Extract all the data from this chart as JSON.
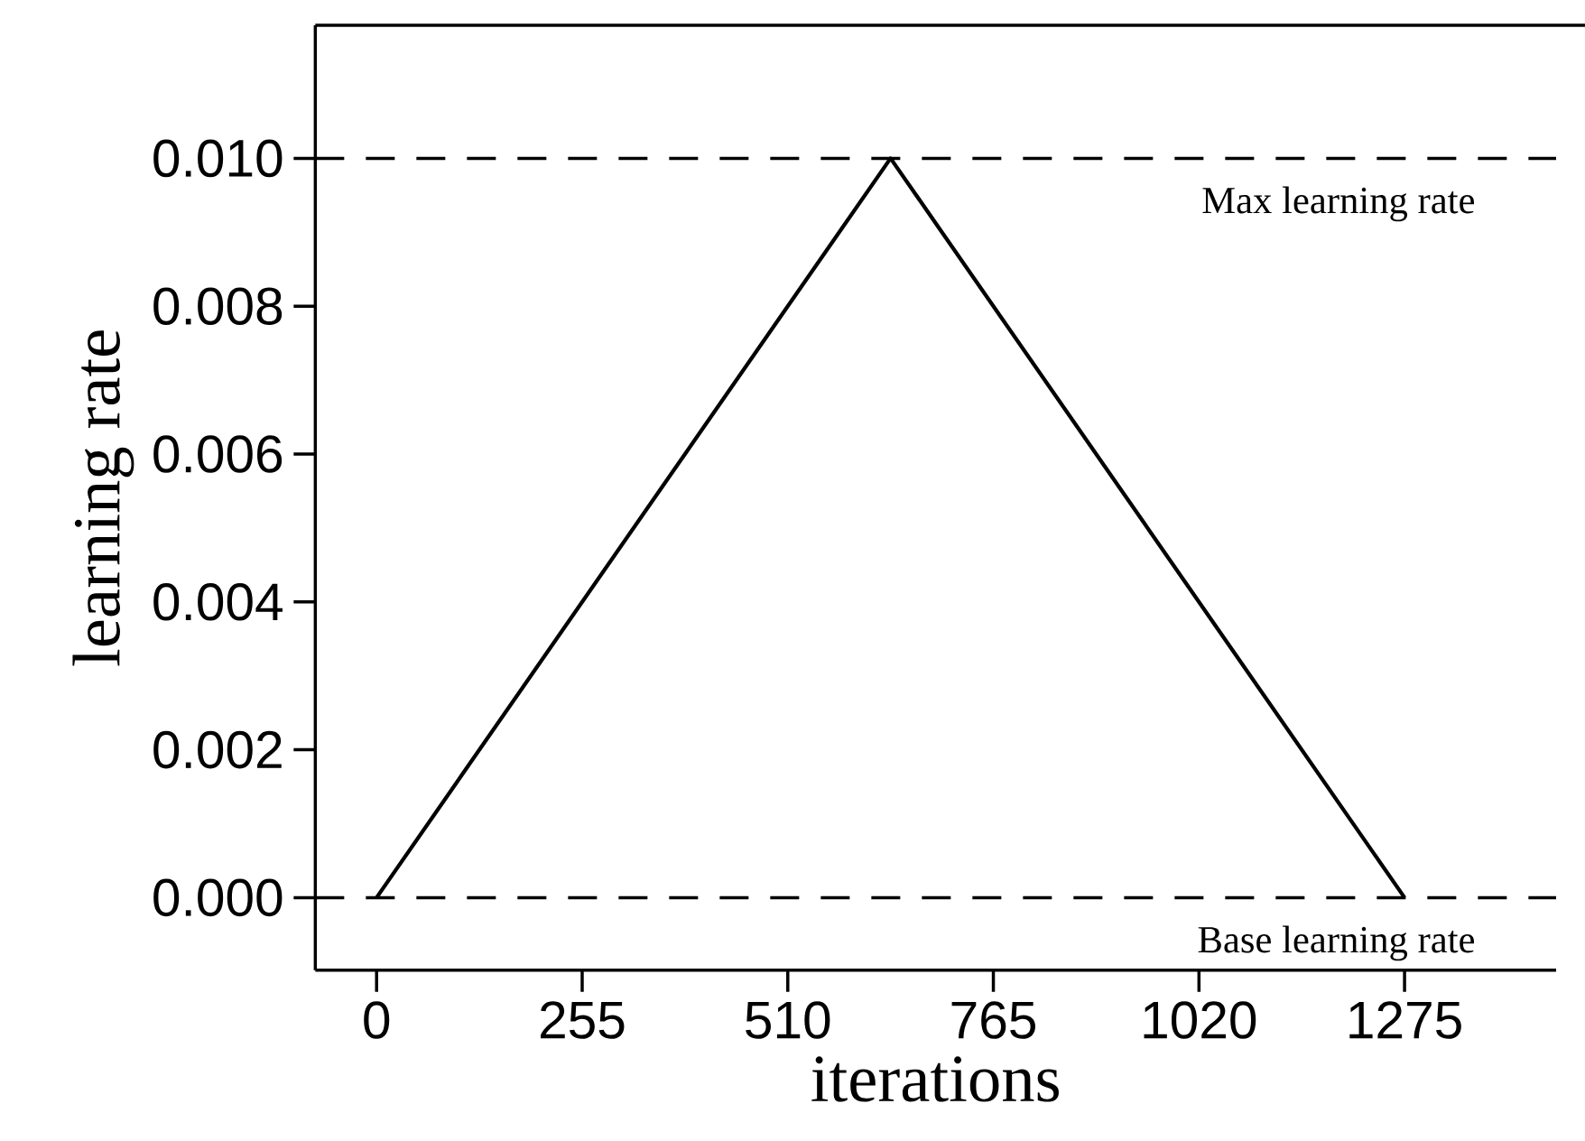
{
  "chart_data": {
    "type": "line",
    "xlabel": "iterations",
    "ylabel": "learning rate",
    "x": [
      0,
      637.5,
      1275
    ],
    "series": [
      {
        "color": "#000000",
        "values": [
          0,
          0.01,
          0
        ]
      }
    ],
    "xlim": [
      -76,
      1463
    ],
    "ylim": [
      -0.00098,
      0.0118
    ],
    "xticks": [
      0,
      255,
      510,
      765,
      1020,
      1275
    ],
    "yticks": [
      {
        "value": 0,
        "label": "0.000"
      },
      {
        "value": 0.002,
        "label": "0.002"
      },
      {
        "value": 0.004,
        "label": "0.004"
      },
      {
        "value": 0.006,
        "label": "0.006"
      },
      {
        "value": 0.008,
        "label": "0.008"
      },
      {
        "value": 0.01,
        "label": "0.010"
      }
    ],
    "ref_lines": [
      {
        "axis": "y",
        "value": 0.01,
        "label": "Max learning rate",
        "line_style": "dashed"
      },
      {
        "axis": "y",
        "value": 0,
        "label": "Base learning rate",
        "line_style": "dashed"
      }
    ],
    "grid": false,
    "marker": "none",
    "line_style": "solid"
  }
}
